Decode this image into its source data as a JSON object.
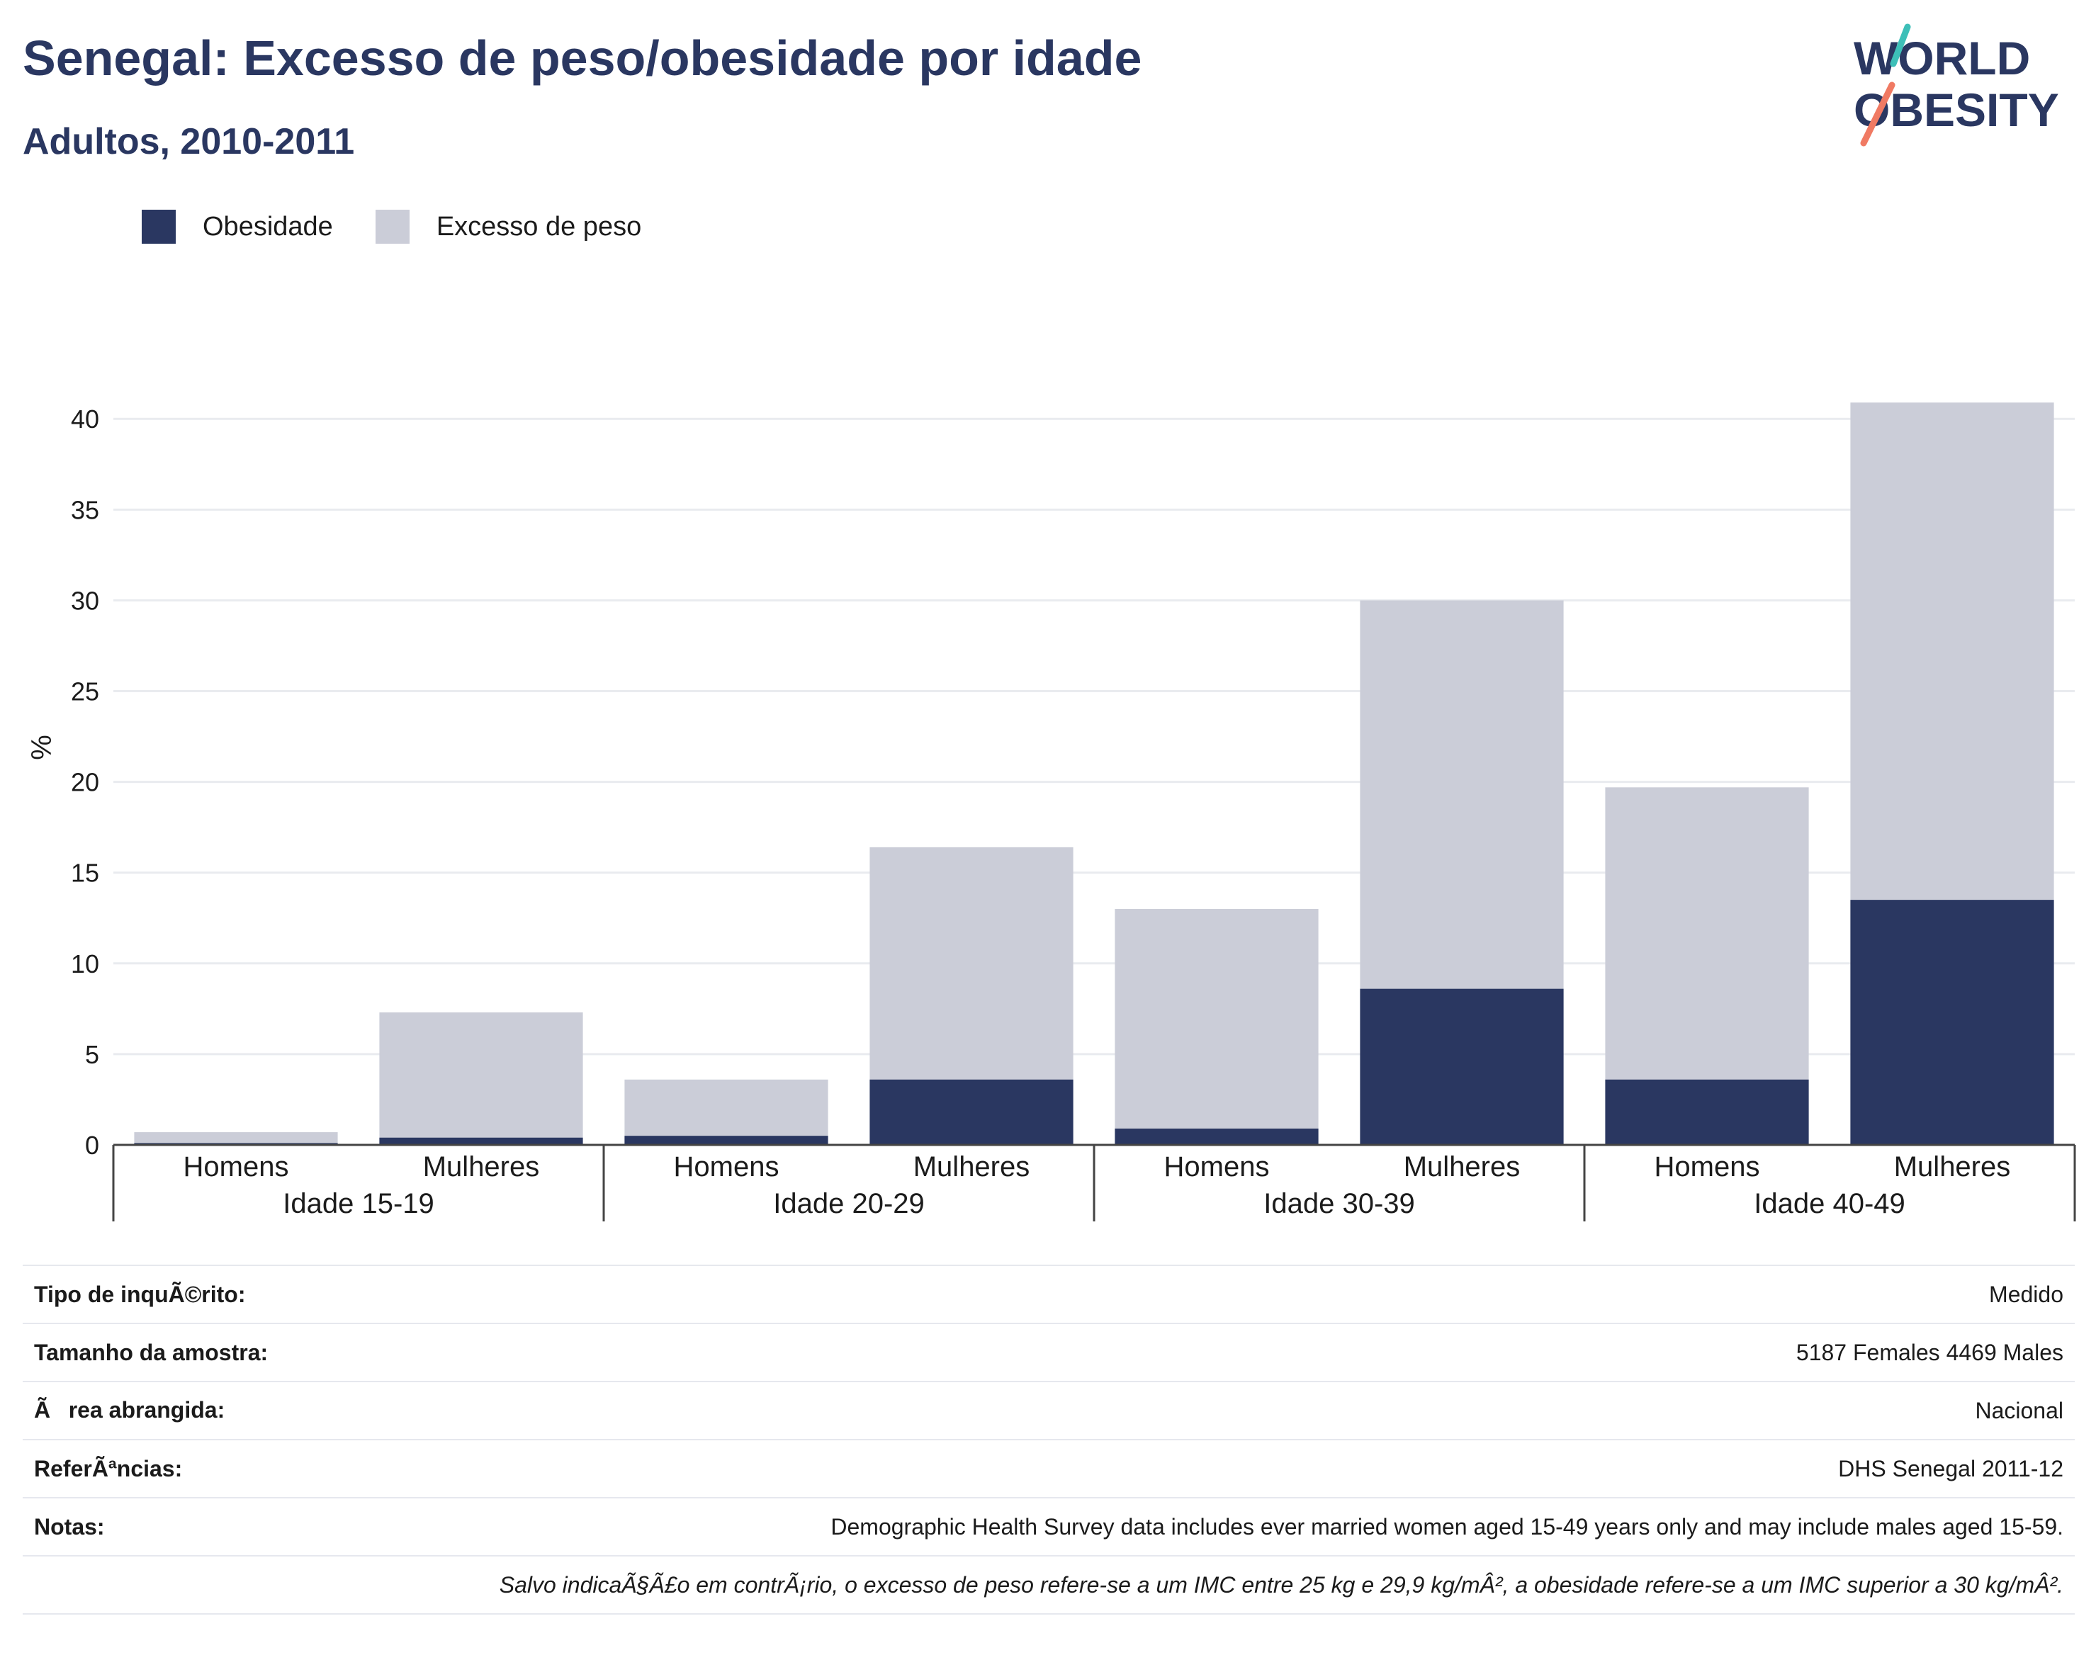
{
  "header": {
    "title": "Senegal: Excesso de peso/obesidade por idade",
    "subtitle": "Adultos, 2010-2011"
  },
  "logo": {
    "line1": "WORLD",
    "line2": "OBESITY",
    "colors": {
      "text": "#2a3761",
      "slash_top": "#3dbfb8",
      "slash_bottom": "#f07a63"
    }
  },
  "legend": [
    {
      "label": "Obesidade",
      "color": "#2a3761"
    },
    {
      "label": "Excesso de peso",
      "color": "#cbcdd8"
    }
  ],
  "chart_data": {
    "type": "bar",
    "stacked": false,
    "ylabel": "%",
    "ylim": [
      0,
      42
    ],
    "yticks": [
      0,
      5,
      10,
      15,
      20,
      25,
      30,
      35,
      40
    ],
    "grid": true,
    "legend_position": "top-left",
    "groups": [
      {
        "label": "Idade 15-19",
        "categories": [
          "Homens",
          "Mulheres"
        ]
      },
      {
        "label": "Idade 20-29",
        "categories": [
          "Homens",
          "Mulheres"
        ]
      },
      {
        "label": "Idade 30-39",
        "categories": [
          "Homens",
          "Mulheres"
        ]
      },
      {
        "label": "Idade 40-49",
        "categories": [
          "Homens",
          "Mulheres"
        ]
      }
    ],
    "categories": [
      "Homens",
      "Mulheres",
      "Homens",
      "Mulheres",
      "Homens",
      "Mulheres",
      "Homens",
      "Mulheres"
    ],
    "series": [
      {
        "name": "Excesso de peso",
        "color": "#cbcdd8",
        "values": [
          0.7,
          7.3,
          3.6,
          16.4,
          13.0,
          30.0,
          19.7,
          40.9
        ]
      },
      {
        "name": "Obesidade",
        "color": "#2a3761",
        "values": [
          0.1,
          0.4,
          0.5,
          3.6,
          0.9,
          8.6,
          3.6,
          13.5
        ]
      }
    ]
  },
  "info": [
    {
      "key": "Tipo de inquÃ©rito:",
      "value": "Medido"
    },
    {
      "key": "Tamanho da amostra:",
      "value": "5187 Females 4469 Males"
    },
    {
      "key": "Ãrea abrangida:",
      "value": "Nacional"
    },
    {
      "key": "ReferÃªncias:",
      "value": "DHS Senegal 2011-12"
    },
    {
      "key": "Notas:",
      "value": "Demographic Health Survey data includes ever married women aged 15-49 years only and may include males aged 15-59."
    }
  ],
  "disclaimer": "Salvo indicaÃ§Ã£o em contrÃ¡rio, o excesso de peso refere-se a um IMC entre 25 kg e 29,9 kg/mÂ², a obesidade refere-se a um IMC superior a 30 kg/mÂ²."
}
